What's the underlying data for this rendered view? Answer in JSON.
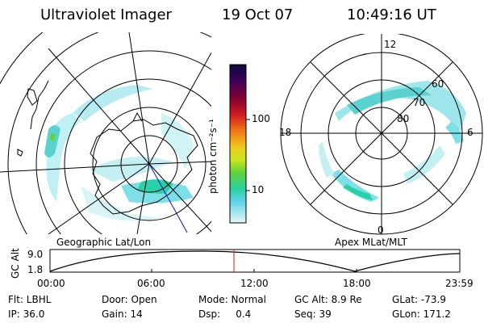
{
  "header": {
    "title": "Ultraviolet Imager",
    "date": "19 Oct 07",
    "time": "10:49:16 UT"
  },
  "left_map": {
    "label": "Geographic Lat/Lon"
  },
  "right_map": {
    "label": "Apex MLat/MLT",
    "mlt_labels": {
      "top": "12",
      "left": "18",
      "right": "6",
      "bottom": "0"
    },
    "lat_labels": [
      "60",
      "70",
      "80"
    ]
  },
  "colorbar": {
    "unit_label": "photon cm⁻²s⁻¹",
    "ticks": [
      "100",
      "10"
    ],
    "colors": [
      "#0a0a3c",
      "#3c005a",
      "#8a0030",
      "#d21e1e",
      "#f07814",
      "#f0c81e",
      "#c8e61e",
      "#64d23c",
      "#28d29b",
      "#5ad2e6",
      "#a0e6f0",
      "#e6f5f8"
    ]
  },
  "altitude_plot": {
    "ylabel": "GC Alt",
    "y_ticks": [
      "9.0",
      "1.8"
    ],
    "x_ticks": [
      "00:00",
      "06:00",
      "12:00",
      "18:00",
      "23:59"
    ],
    "current_time_color": "#e01010"
  },
  "info": {
    "row1": [
      "Flt: LBHL",
      "Door: Open",
      "Mode: Normal",
      "GC Alt: 8.9 Re",
      "GLat: -73.9"
    ],
    "row2": [
      "IP: 36.0",
      "Gain: 14",
      "Dsp:     0.4",
      "Seq: 39",
      "GLon: 171.2"
    ]
  }
}
